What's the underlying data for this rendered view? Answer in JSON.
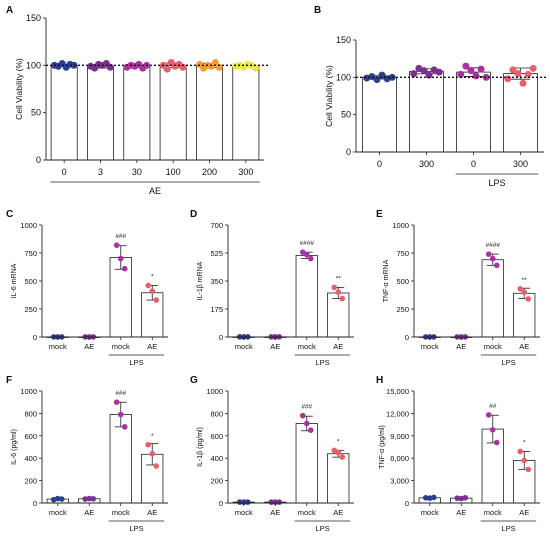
{
  "chart_data": [
    {
      "panel": "A",
      "type": "bar",
      "ylabel": "Cell Viability (%)",
      "categories": [
        "0",
        "3",
        "30",
        "100",
        "200",
        "300"
      ],
      "values": [
        100,
        99,
        99,
        100,
        100,
        99
      ],
      "ylim": [
        0,
        150
      ],
      "yticks": [
        "0",
        "50",
        "100",
        "150"
      ],
      "reference_line": 100,
      "group_label": "AE",
      "point_colors": [
        "#2b3f8c",
        "#7b2f8e",
        "#a8329e",
        "#e5606a",
        "#f29b3d",
        "#e8e845"
      ],
      "points": [
        [
          100,
          99,
          102,
          98,
          101,
          100
        ],
        [
          99,
          97,
          101,
          100,
          102,
          98
        ],
        [
          98,
          100,
          99,
          101,
          97,
          100
        ],
        [
          100,
          96,
          103,
          99,
          101,
          98
        ],
        [
          101,
          97,
          100,
          99,
          103,
          98
        ],
        [
          99,
          100,
          98,
          101,
          100,
          97
        ]
      ]
    },
    {
      "panel": "B",
      "type": "bar",
      "ylabel": "Cell Viability (%)",
      "categories": [
        "0",
        "300",
        "0",
        "300"
      ],
      "values": [
        100,
        108,
        107,
        105
      ],
      "ylim": [
        0,
        150
      ],
      "yticks": [
        "0",
        "50",
        "100",
        "150"
      ],
      "reference_line": 100,
      "group_label": "LPS",
      "point_colors": [
        "#2b3f8c",
        "#7b2f8e",
        "#a8329e",
        "#e5606a"
      ],
      "points": [
        [
          99,
          101,
          97,
          103,
          98,
          100
        ],
        [
          105,
          112,
          109,
          103,
          110,
          107
        ],
        [
          104,
          115,
          109,
          102,
          111,
          100
        ],
        [
          98,
          110,
          105,
          92,
          104,
          112
        ]
      ]
    },
    {
      "panel": "C",
      "type": "bar",
      "ylabel": "IL-6  mRNA",
      "categories": [
        "mock",
        "AE",
        "mock",
        "AE"
      ],
      "values": [
        1,
        1,
        710,
        395
      ],
      "ylim": [
        0,
        1000
      ],
      "yticks": [
        "0",
        "250",
        "500",
        "750",
        "1000"
      ],
      "group_label": "LPS",
      "significance": [
        "",
        "",
        "###",
        "*"
      ],
      "point_colors": [
        "#2b3f8c",
        "#7b2f8e",
        "#a8329e",
        "#e5606a"
      ],
      "points": [
        [
          1,
          1,
          1
        ],
        [
          1,
          1,
          1
        ],
        [
          820,
          700,
          610
        ],
        [
          460,
          410,
          330
        ]
      ]
    },
    {
      "panel": "D",
      "type": "bar",
      "ylabel": "IL-1β  mRNA",
      "categories": [
        "mock",
        "AE",
        "mock",
        "AE"
      ],
      "values": [
        1,
        1,
        510,
        275
      ],
      "ylim": [
        0,
        700
      ],
      "yticks": [
        "0",
        "175",
        "350",
        "525",
        "700"
      ],
      "group_label": "LPS",
      "significance": [
        "",
        "",
        "####",
        "**"
      ],
      "point_colors": [
        "#2b3f8c",
        "#7b2f8e",
        "#a8329e",
        "#e5606a"
      ],
      "points": [
        [
          1,
          1,
          1
        ],
        [
          1,
          1,
          1
        ],
        [
          530,
          515,
          490
        ],
        [
          310,
          280,
          240
        ]
      ]
    },
    {
      "panel": "E",
      "type": "bar",
      "ylabel": "TNF-α  mRNA",
      "categories": [
        "mock",
        "AE",
        "mock",
        "AE"
      ],
      "values": [
        1,
        1,
        690,
        390
      ],
      "ylim": [
        0,
        1000
      ],
      "yticks": [
        "0",
        "250",
        "500",
        "750",
        "1000"
      ],
      "group_label": "LPS",
      "significance": [
        "",
        "",
        "####",
        "**"
      ],
      "point_colors": [
        "#2b3f8c",
        "#7b2f8e",
        "#a8329e",
        "#e5606a"
      ],
      "points": [
        [
          1,
          1,
          1
        ],
        [
          1,
          1,
          1
        ],
        [
          740,
          700,
          640
        ],
        [
          430,
          400,
          340
        ]
      ]
    },
    {
      "panel": "F",
      "type": "bar",
      "ylabel": "IL-6  (pg/ml)",
      "categories": [
        "mock",
        "AE",
        "mock",
        "AE"
      ],
      "values": [
        35,
        38,
        790,
        435
      ],
      "ylim": [
        0,
        1000
      ],
      "yticks": [
        "0",
        "200",
        "400",
        "600",
        "800",
        "1000"
      ],
      "group_label": "LPS",
      "significance": [
        "",
        "",
        "###",
        "*"
      ],
      "point_colors": [
        "#2b3f8c",
        "#7b2f8e",
        "#a8329e",
        "#e5606a"
      ],
      "points": [
        [
          30,
          40,
          35
        ],
        [
          35,
          40,
          38
        ],
        [
          900,
          790,
          680
        ],
        [
          520,
          440,
          330
        ]
      ]
    },
    {
      "panel": "G",
      "type": "bar",
      "ylabel": "IL-1β  (pg/ml)",
      "categories": [
        "mock",
        "AE",
        "mock",
        "AE"
      ],
      "values": [
        8,
        8,
        710,
        440
      ],
      "ylim": [
        0,
        1000
      ],
      "yticks": [
        "0",
        "200",
        "400",
        "600",
        "800",
        "1000"
      ],
      "group_label": "LPS",
      "significance": [
        "",
        "",
        "###",
        "*"
      ],
      "point_colors": [
        "#2b3f8c",
        "#7b2f8e",
        "#a8329e",
        "#e5606a"
      ],
      "points": [
        [
          8,
          8,
          8
        ],
        [
          8,
          8,
          8
        ],
        [
          780,
          710,
          650
        ],
        [
          470,
          450,
          410
        ]
      ]
    },
    {
      "panel": "H",
      "type": "bar",
      "ylabel": "TNF-α  (pg/ml)",
      "categories": [
        "mock",
        "AE",
        "mock",
        "AE"
      ],
      "values": [
        700,
        650,
        9900,
        5700
      ],
      "ylim": [
        0,
        15000
      ],
      "yticks": [
        "0",
        "3,000",
        "6,000",
        "9,000",
        "12,000",
        "15,000"
      ],
      "group_label": "LPS",
      "significance": [
        "",
        "",
        "##",
        "*"
      ],
      "point_colors": [
        "#2b3f8c",
        "#7b2f8e",
        "#a8329e",
        "#e5606a"
      ],
      "points": [
        [
          700,
          650,
          750
        ],
        [
          650,
          600,
          700
        ],
        [
          11800,
          9800,
          8100
        ],
        [
          6900,
          5700,
          4500
        ]
      ]
    }
  ]
}
